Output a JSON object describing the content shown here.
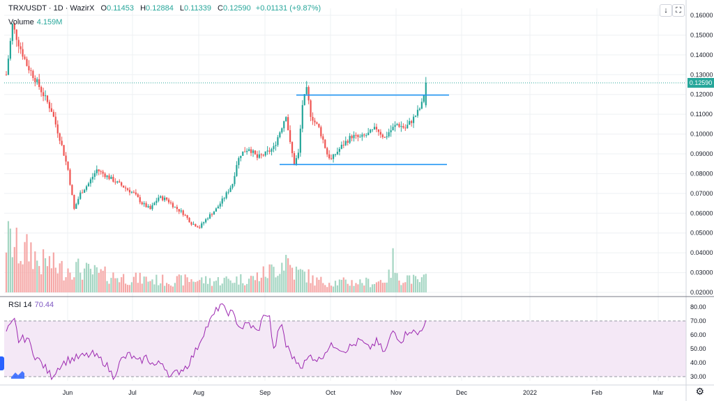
{
  "header": {
    "symbol": "TRX/USDT · 1D · WazirX",
    "o_label": "O",
    "o_value": "0.11453",
    "h_label": "H",
    "h_value": "0.12884",
    "l_label": "L",
    "l_value": "0.11339",
    "c_label": "C",
    "c_value": "0.12590",
    "change": "+0.01131 (+9.87%)"
  },
  "volume": {
    "label": "Volume",
    "value": "4.159M"
  },
  "rsi": {
    "label": "RSI 14",
    "value": "70.44"
  },
  "last_price": "0.12590",
  "colors": {
    "up": "#26a69a",
    "down": "#ef5350",
    "up_vol": "#a5d6c3",
    "down_vol": "#f5a7a6",
    "rsi": "#9c27b0",
    "rsi_band": "#f3e5f5",
    "trend": "#2196f3",
    "grid": "#eef0f3"
  },
  "chart_data": {
    "type": "candlestick",
    "symbol": "TRX/USDT",
    "interval": "1D",
    "exchange": "WazirX",
    "price_axis": {
      "ticks": [
        "0.16000",
        "0.15000",
        "0.14000",
        "0.13000",
        "0.12000",
        "0.11000",
        "0.10000",
        "0.09000",
        "0.08000",
        "0.07000",
        "0.06000",
        "0.05000",
        "0.04000",
        "0.03000",
        "0.02000"
      ]
    },
    "rsi_axis": {
      "ticks": [
        "80.00",
        "70.00",
        "60.00",
        "50.00",
        "40.00",
        "30.00"
      ],
      "upper_band": 70,
      "lower_band": 30
    },
    "x_ticks": [
      "Jun",
      "Jul",
      "Aug",
      "Sep",
      "Oct",
      "Nov",
      "Dec",
      "2022",
      "Feb",
      "Mar"
    ],
    "trendlines": [
      {
        "name": "resistance",
        "price": 0.1197
      },
      {
        "name": "support",
        "price": 0.0846
      }
    ],
    "close_path": [
      [
        0,
        0.13
      ],
      [
        3,
        0.155
      ],
      [
        6,
        0.146
      ],
      [
        10,
        0.135
      ],
      [
        14,
        0.128
      ],
      [
        18,
        0.12
      ],
      [
        22,
        0.112
      ],
      [
        26,
        0.098
      ],
      [
        30,
        0.082
      ],
      [
        33,
        0.062
      ],
      [
        36,
        0.07
      ],
      [
        40,
        0.075
      ],
      [
        44,
        0.082
      ],
      [
        50,
        0.078
      ],
      [
        56,
        0.074
      ],
      [
        62,
        0.07
      ],
      [
        66,
        0.065
      ],
      [
        70,
        0.062
      ],
      [
        74,
        0.068
      ],
      [
        78,
        0.067
      ],
      [
        82,
        0.063
      ],
      [
        86,
        0.06
      ],
      [
        90,
        0.055
      ],
      [
        94,
        0.053
      ],
      [
        98,
        0.058
      ],
      [
        102,
        0.062
      ],
      [
        106,
        0.068
      ],
      [
        110,
        0.075
      ],
      [
        112,
        0.085
      ],
      [
        114,
        0.09
      ],
      [
        118,
        0.093
      ],
      [
        122,
        0.088
      ],
      [
        126,
        0.09
      ],
      [
        130,
        0.093
      ],
      [
        134,
        0.104
      ],
      [
        136,
        0.11
      ],
      [
        138,
        0.095
      ],
      [
        140,
        0.085
      ],
      [
        142,
        0.09
      ],
      [
        144,
        0.115
      ],
      [
        146,
        0.122
      ],
      [
        148,
        0.11
      ],
      [
        150,
        0.106
      ],
      [
        152,
        0.103
      ],
      [
        154,
        0.097
      ],
      [
        156,
        0.09
      ],
      [
        158,
        0.087
      ],
      [
        160,
        0.09
      ],
      [
        164,
        0.095
      ],
      [
        168,
        0.099
      ],
      [
        172,
        0.098
      ],
      [
        176,
        0.1
      ],
      [
        180,
        0.103
      ],
      [
        184,
        0.098
      ],
      [
        186,
        0.101
      ],
      [
        190,
        0.105
      ],
      [
        194,
        0.103
      ],
      [
        198,
        0.108
      ],
      [
        200,
        0.111
      ],
      [
        202,
        0.115
      ],
      [
        204,
        0.1259
      ]
    ],
    "volume_profile": [
      [
        0,
        0.042
      ],
      [
        4,
        0.036
      ],
      [
        8,
        0.03
      ],
      [
        12,
        0.034
      ],
      [
        16,
        0.022
      ],
      [
        20,
        0.024
      ],
      [
        24,
        0.02
      ],
      [
        28,
        0.018
      ],
      [
        32,
        0.02
      ],
      [
        40,
        0.016
      ],
      [
        50,
        0.013
      ],
      [
        60,
        0.011
      ],
      [
        70,
        0.01
      ],
      [
        80,
        0.009
      ],
      [
        90,
        0.01
      ],
      [
        100,
        0.009
      ],
      [
        110,
        0.01
      ],
      [
        120,
        0.011
      ],
      [
        126,
        0.015
      ],
      [
        132,
        0.02
      ],
      [
        136,
        0.027
      ],
      [
        140,
        0.016
      ],
      [
        146,
        0.014
      ],
      [
        150,
        0.009
      ],
      [
        160,
        0.008
      ],
      [
        170,
        0.008
      ],
      [
        180,
        0.008
      ],
      [
        186,
        0.012
      ],
      [
        188,
        0.025
      ],
      [
        190,
        0.011
      ],
      [
        196,
        0.012
      ],
      [
        200,
        0.008
      ],
      [
        204,
        0.011
      ]
    ],
    "rsi_path": [
      [
        0,
        62
      ],
      [
        4,
        70
      ],
      [
        6,
        56
      ],
      [
        10,
        58
      ],
      [
        14,
        45
      ],
      [
        18,
        38
      ],
      [
        22,
        30
      ],
      [
        26,
        38
      ],
      [
        30,
        42
      ],
      [
        36,
        44
      ],
      [
        42,
        46
      ],
      [
        48,
        40
      ],
      [
        52,
        30
      ],
      [
        56,
        42
      ],
      [
        60,
        46
      ],
      [
        64,
        40
      ],
      [
        68,
        44
      ],
      [
        72,
        38
      ],
      [
        76,
        40
      ],
      [
        80,
        30
      ],
      [
        84,
        34
      ],
      [
        88,
        38
      ],
      [
        92,
        48
      ],
      [
        96,
        62
      ],
      [
        100,
        72
      ],
      [
        104,
        82
      ],
      [
        106,
        78
      ],
      [
        110,
        75
      ],
      [
        114,
        65
      ],
      [
        118,
        68
      ],
      [
        122,
        62
      ],
      [
        126,
        76
      ],
      [
        128,
        72
      ],
      [
        130,
        48
      ],
      [
        132,
        60
      ],
      [
        134,
        68
      ],
      [
        136,
        52
      ],
      [
        138,
        48
      ],
      [
        140,
        42
      ],
      [
        144,
        38
      ],
      [
        148,
        45
      ],
      [
        152,
        42
      ],
      [
        156,
        50
      ],
      [
        160,
        53
      ],
      [
        164,
        49
      ],
      [
        168,
        52
      ],
      [
        172,
        56
      ],
      [
        176,
        50
      ],
      [
        180,
        55
      ],
      [
        184,
        47
      ],
      [
        188,
        63
      ],
      [
        192,
        56
      ],
      [
        196,
        64
      ],
      [
        200,
        60
      ],
      [
        204,
        70.44
      ]
    ]
  }
}
